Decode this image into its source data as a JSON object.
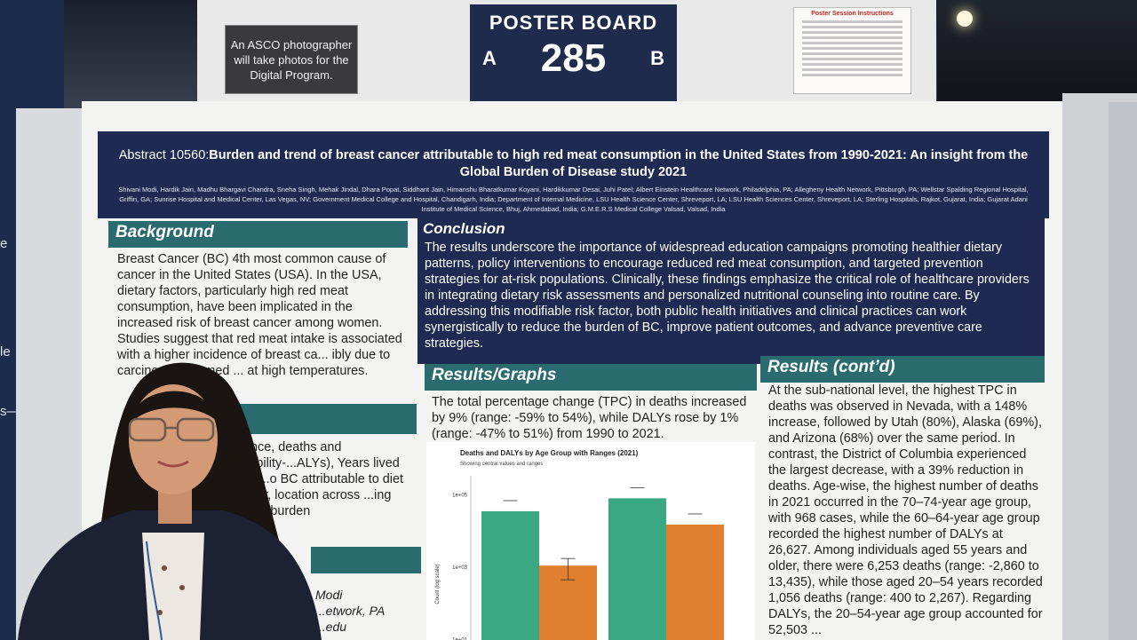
{
  "background_sign": {
    "photographer_notice": "An ASCO photographer will take photos for the Digital Program."
  },
  "board_sign": {
    "title": "POSTER BOARD",
    "left": "A",
    "number": "285",
    "right": "B"
  },
  "instructions": {
    "title": "Poster Session Instructions"
  },
  "side_text": [
    "e",
    "le",
    "s—"
  ],
  "poster": {
    "abstract_label": "Abstract 10560:",
    "title": "Burden and trend of breast cancer attributable to high red meat consumption in the United States from 1990-2021: An insight from the Global Burden of Disease study 2021",
    "authors": "Shivani Modi, Hardik Jain, Madhu Bhargavi Chandra, Sneha Singh, Mehak Jindal, Dhara Popat, Siddhant Jain, Himanshu Bharatkumar Koyani, Hardikkumar Desai, Juhi Patel; Albert Einstein Healthcare Network, Philadelphia, PA; Allegheny Health Network, Pittsburgh, PA; Wellstar Spalding Regional Hospital, Griffin, GA; Sunrise Hospital and Medical Center, Las Vegas, NV; Government Medical College and Hospital, Chandigarh, India; Department of Internal Medicine, LSU Health Science Center, Shreveport, LA; LSU Health Sciences Center, Shreveport, LA; Sterling Hospitals, Rajkot, Gujarat, India; Gujarat Adani Institute of Medical Science, Bhuj, Ahmedabad, India; G.M.E.R.S Medical College Valsad, Valsad, India",
    "background": {
      "heading": "Background",
      "text": "Breast Cancer (BC) 4th most common cause of cancer in the United States (USA). In the USA, dietary factors, particularly high red meat consumption, have been implicated in the increased risk of breast cancer among women. Studies suggest that red meat intake is associated with a higher incidence of breast ca... ibly due to carcinogens formed ... at high temperatures."
    },
    "methods_fragment": "...ence, deaths and disability-...ALYs), Years lived with ...o BC attributable to diet ...year, location across ...ing global burden",
    "contact_fragment": "Modi\n...etwork, PA\n...edu",
    "conclusion": {
      "heading": "Conclusion",
      "text": "The results underscore the importance of widespread education campaigns promoting healthier dietary patterns, policy interventions to encourage reduced red meat consumption, and targeted prevention strategies for at-risk populations. Clinically, these findings emphasize the critical role of healthcare providers in integrating dietary risk assessments and personalized nutritional counseling into routine care. By addressing this modifiable risk factor, both public health initiatives and clinical practices can work synergistically to reduce the burden of BC, improve patient outcomes, and advance preventive care strategies."
    },
    "results": {
      "heading": "Results/Graphs",
      "text": "The total percentage change (TPC) in deaths increased by 9% (range: -59% to 54%), while DALYs rose by 1% (range: -47% to 51%) from 1990 to 2021."
    },
    "results_cont": {
      "heading": "Results (cont’d)",
      "text": "At the sub-national level, the highest TPC in deaths was observed in Nevada, with a 148% increase, followed by Utah (80%), Alaska (69%), and Arizona (68%) over the same period. In contrast, the District of Columbia experienced the largest decrease, with a 39% reduction in deaths. Age-wise, the highest number of deaths in 2021 occurred in the 70–74-year age group, with 968 cases, while the 60–64-year age group recorded the highest number of DALYs at 26,627. Among individuals aged 55 years and older, there were 6,253 deaths (range: -2,860 to 13,435), while those aged 20–54 years recorded 1,056 deaths (range: 400 to 2,267). Regarding DALYs, the 20–54-year age group accounted for 52,503 ..."
    }
  },
  "chart_data": {
    "type": "bar",
    "title": "Deaths and DALYs by Age Group with Ranges (2021)",
    "subtitle": "Showing central values and ranges",
    "ylabel": "Count (log scale)",
    "yscale": "log",
    "yticks": [
      "1e+01",
      "1e+03",
      "1e+05"
    ],
    "ylim": [
      1,
      300000
    ],
    "series": [
      {
        "color": "#3aa882",
        "values": [
          35000,
          80000
        ]
      },
      {
        "color": "#e07f2e",
        "values": [
          1100,
          15000
        ]
      }
    ]
  },
  "colors": {
    "poster_navy": "#1f2a52",
    "section_teal": "#2a6b6f"
  }
}
